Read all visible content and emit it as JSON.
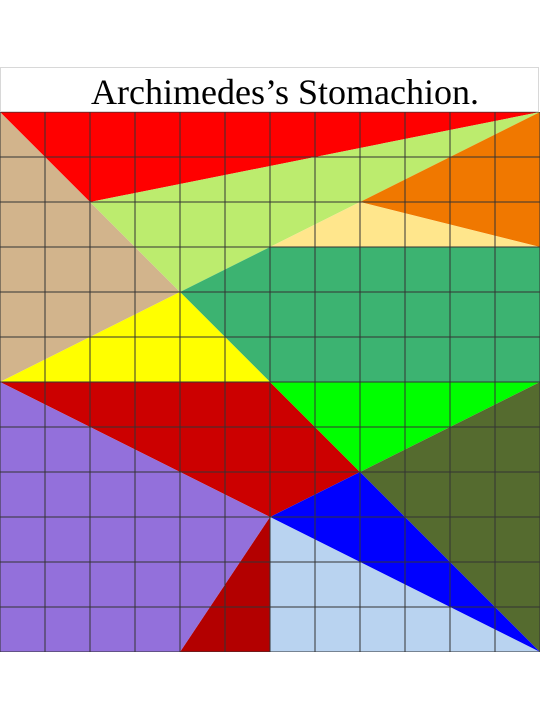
{
  "title": "Archimedes’s Stomachion.",
  "grid": {
    "units": 12,
    "line_color": "#333333"
  },
  "pieces": [
    {
      "name": "piece-top-red",
      "color": "#ff0000",
      "points": [
        [
          0,
          0
        ],
        [
          12,
          0
        ],
        [
          2,
          2
        ]
      ]
    },
    {
      "name": "piece-tan",
      "color": "#d2b48c",
      "points": [
        [
          0,
          0
        ],
        [
          2,
          2
        ],
        [
          4,
          4
        ],
        [
          0,
          6
        ]
      ]
    },
    {
      "name": "piece-light-green",
      "color": "#bcec6e",
      "points": [
        [
          2,
          2
        ],
        [
          12,
          0
        ],
        [
          4,
          4
        ]
      ]
    },
    {
      "name": "piece-orange",
      "color": "#f07800",
      "points": [
        [
          12,
          0
        ],
        [
          8,
          2
        ],
        [
          12,
          3
        ]
      ]
    },
    {
      "name": "piece-pale-yellow",
      "color": "#ffe68c",
      "points": [
        [
          8,
          2
        ],
        [
          6,
          3
        ],
        [
          12,
          3
        ]
      ]
    },
    {
      "name": "piece-sea-green",
      "color": "#3cb371",
      "points": [
        [
          4,
          4
        ],
        [
          6,
          3
        ],
        [
          12,
          3
        ],
        [
          12,
          6
        ],
        [
          6,
          6
        ]
      ]
    },
    {
      "name": "piece-yellow",
      "color": "#ffff00",
      "points": [
        [
          0,
          6
        ],
        [
          4,
          4
        ],
        [
          6,
          6
        ]
      ]
    },
    {
      "name": "piece-dark-red",
      "color": "#cc0000",
      "points": [
        [
          0,
          6
        ],
        [
          6,
          6
        ],
        [
          8,
          8
        ],
        [
          6,
          9
        ]
      ]
    },
    {
      "name": "piece-bright-green",
      "color": "#00ff00",
      "points": [
        [
          6,
          6
        ],
        [
          12,
          6
        ],
        [
          8,
          8
        ]
      ]
    },
    {
      "name": "piece-olive",
      "color": "#556b2f",
      "points": [
        [
          12,
          6
        ],
        [
          8,
          8
        ],
        [
          12,
          12
        ]
      ]
    },
    {
      "name": "piece-blue",
      "color": "#0000ff",
      "points": [
        [
          8,
          8
        ],
        [
          6,
          9
        ],
        [
          12,
          12
        ]
      ]
    },
    {
      "name": "piece-light-blue",
      "color": "#b9d3f0",
      "points": [
        [
          6,
          9
        ],
        [
          12,
          12
        ],
        [
          6,
          12
        ]
      ]
    },
    {
      "name": "piece-small-dark-red",
      "color": "#b30000",
      "points": [
        [
          6,
          9
        ],
        [
          6,
          12
        ],
        [
          4,
          12
        ]
      ]
    },
    {
      "name": "piece-purple",
      "color": "#9370db",
      "points": [
        [
          0,
          6
        ],
        [
          6,
          9
        ],
        [
          4,
          12
        ],
        [
          0,
          12
        ]
      ]
    }
  ]
}
